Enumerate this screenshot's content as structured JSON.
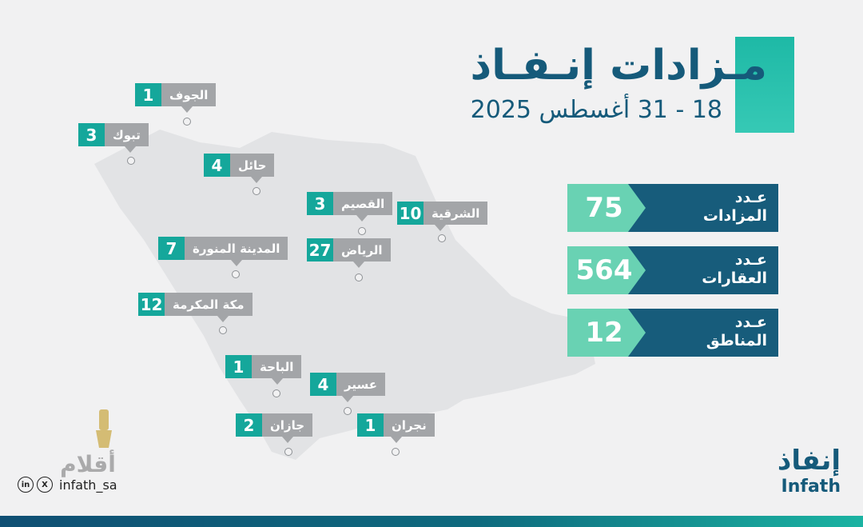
{
  "header": {
    "title": "مـزادات إنـفـاذ",
    "subtitle": "18 - 31 أغسطس 2025"
  },
  "regions": [
    {
      "name": "الجوف",
      "count": "1"
    },
    {
      "name": "تبوك",
      "count": "3"
    },
    {
      "name": "حائل",
      "count": "4"
    },
    {
      "name": "القصيم",
      "count": "3"
    },
    {
      "name": "الشرقية",
      "count": "10"
    },
    {
      "name": "المدينة المنورة",
      "count": "7"
    },
    {
      "name": "الرياض",
      "count": "27"
    },
    {
      "name": "مكة المكرمة",
      "count": "12"
    },
    {
      "name": "الباحة",
      "count": "1"
    },
    {
      "name": "عسير",
      "count": "4"
    },
    {
      "name": "جازان",
      "count": "2"
    },
    {
      "name": "نجران",
      "count": "1"
    }
  ],
  "stats": [
    {
      "label_line1": "عـدد",
      "label_line2": "المزادات",
      "value": "75"
    },
    {
      "label_line1": "عـدد",
      "label_line2": "العقارات",
      "value": "564"
    },
    {
      "label_line1": "عـدد",
      "label_line2": "المناطق",
      "value": "12"
    }
  ],
  "brand": {
    "logo_ar": "إنفاذ",
    "logo_en": "Infath"
  },
  "social": {
    "icons": [
      "linkedin-icon",
      "x-icon"
    ],
    "linkedin_glyph": "in",
    "x_glyph": "X",
    "handle": "infath_sa"
  },
  "watermark": {
    "text": "أقلام"
  },
  "colors": {
    "teal": "#15a79b",
    "navy": "#175c7b",
    "mint": "#69d2b3",
    "gray_label": "#a3a5a8",
    "map_fill": "#e2e3e5"
  }
}
